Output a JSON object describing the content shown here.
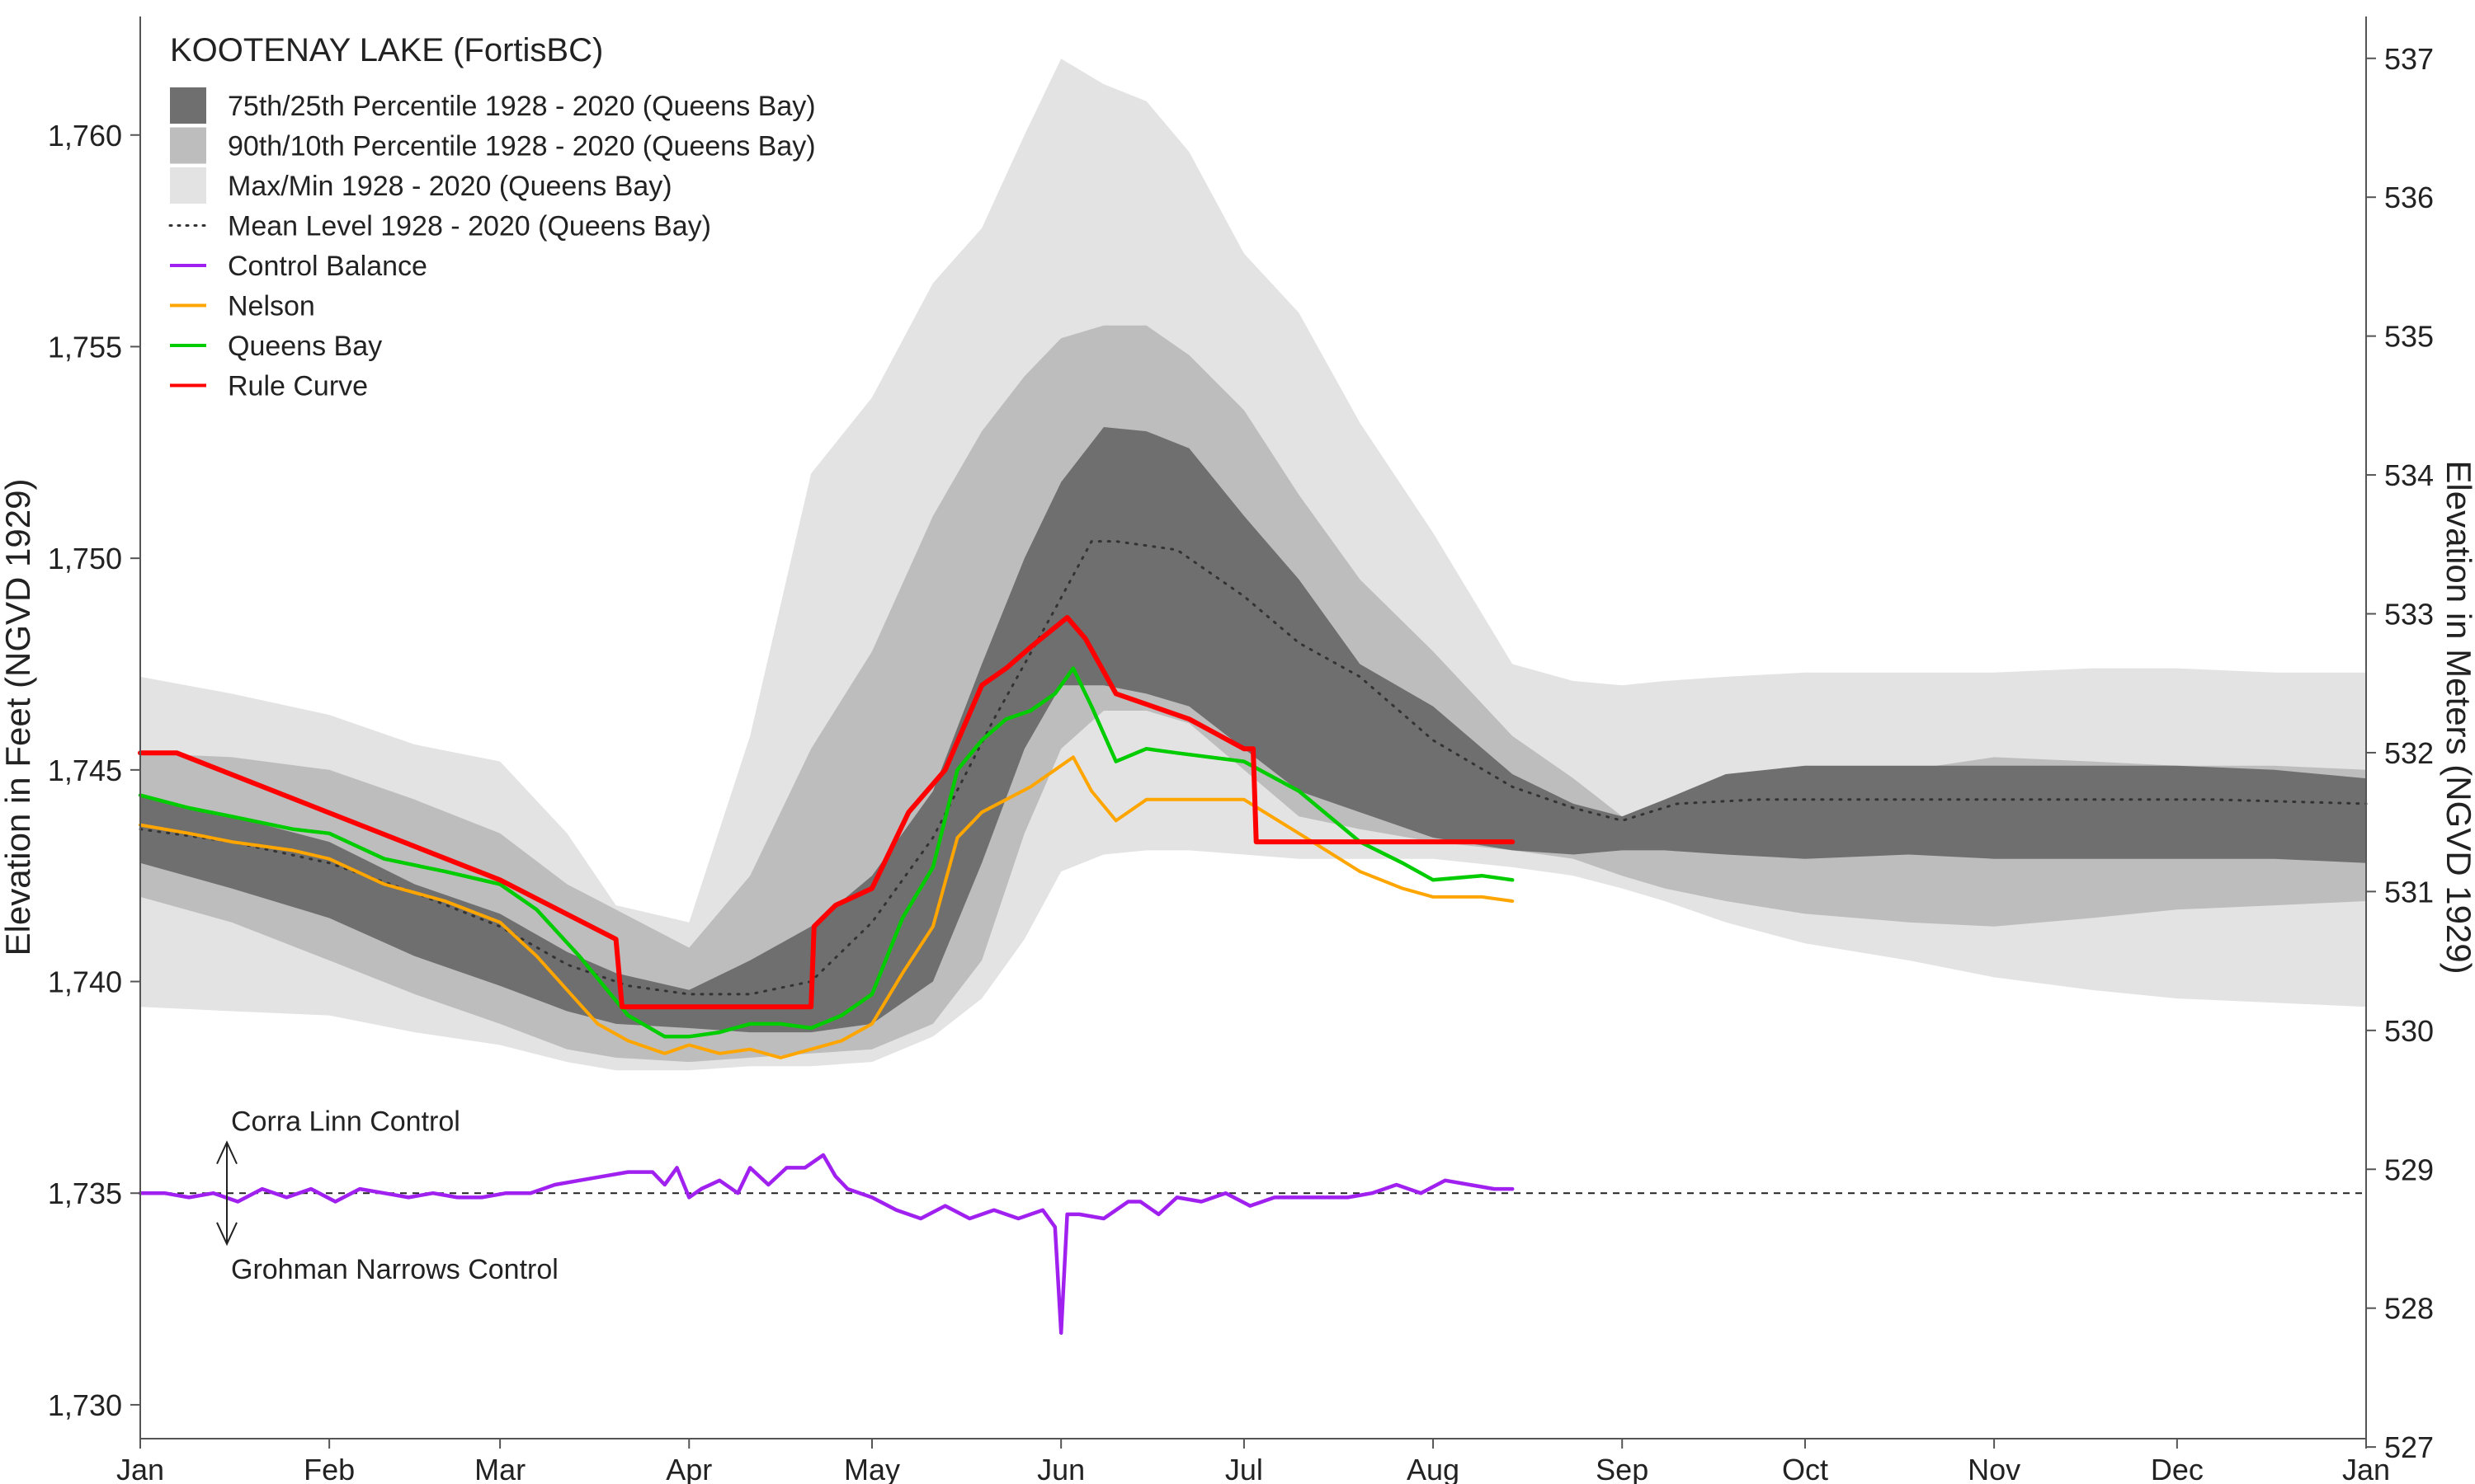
{
  "chart_data": {
    "type": "area+line",
    "title": "KOOTENAY LAKE (FortisBC)",
    "ylabel_left": "Elevation in Feet (NGVD 1929)",
    "ylabel_right": "Elevation in Meters (NGVD 1929)",
    "ylim_feet": [
      1729.2,
      1762.8
    ],
    "yticks_feet": [
      "1,730",
      "1,735",
      "1,740",
      "1,745",
      "1,750",
      "1,755",
      "1,760"
    ],
    "yticks_meters": [
      "527",
      "528",
      "529",
      "530",
      "531",
      "532",
      "533",
      "534",
      "535",
      "536",
      "537"
    ],
    "xlim_days": [
      0,
      365
    ],
    "xticks": [
      {
        "label": "Jan",
        "day": 0
      },
      {
        "label": "Feb",
        "day": 31
      },
      {
        "label": "Mar",
        "day": 59
      },
      {
        "label": "Apr",
        "day": 90
      },
      {
        "label": "May",
        "day": 120
      },
      {
        "label": "Jun",
        "day": 151
      },
      {
        "label": "Jul",
        "day": 181
      },
      {
        "label": "Aug",
        "day": 212
      },
      {
        "label": "Sep",
        "day": 243
      },
      {
        "label": "Oct",
        "day": 273
      },
      {
        "label": "Nov",
        "day": 304
      },
      {
        "label": "Dec",
        "day": 334
      },
      {
        "label": "Jan",
        "day": 365
      }
    ],
    "legend": [
      {
        "label": "75th/25th Percentile 1928 - 2020 (Queens Bay)",
        "kind": "fill",
        "color": "#6f6f6f"
      },
      {
        "label": "90th/10th Percentile 1928 - 2020 (Queens Bay)",
        "kind": "fill",
        "color": "#bdbdbd"
      },
      {
        "label": "Max/Min 1928 - 2020 (Queens Bay)",
        "kind": "fill",
        "color": "#e3e3e3"
      },
      {
        "label": "Mean Level 1928 - 2020 (Queens Bay)",
        "kind": "dotted",
        "color": "#333333"
      },
      {
        "label": "Control Balance",
        "kind": "line",
        "color": "#a020f0"
      },
      {
        "label": "Nelson",
        "kind": "line",
        "color": "#ffa500"
      },
      {
        "label": "Queens Bay",
        "kind": "line",
        "color": "#00cc00"
      },
      {
        "label": "Rule Curve",
        "kind": "line",
        "color": "#ff0000"
      }
    ],
    "bands": {
      "x": [
        0,
        15,
        31,
        45,
        59,
        70,
        78,
        90,
        100,
        110,
        120,
        130,
        138,
        145,
        151,
        158,
        165,
        172,
        181,
        190,
        200,
        212,
        225,
        235,
        243,
        250,
        260,
        273,
        290,
        304,
        320,
        334,
        350,
        365
      ],
      "max": [
        1747.2,
        1746.8,
        1746.3,
        1745.6,
        1745.2,
        1743.5,
        1741.8,
        1741.4,
        1745.8,
        1752.0,
        1753.8,
        1756.5,
        1757.8,
        1760.0,
        1761.8,
        1761.2,
        1760.8,
        1759.6,
        1757.2,
        1755.8,
        1753.2,
        1750.6,
        1747.5,
        1747.1,
        1747.0,
        1747.1,
        1747.2,
        1747.3,
        1747.3,
        1747.3,
        1747.4,
        1747.4,
        1747.3,
        1747.3
      ],
      "p90": [
        1745.4,
        1745.3,
        1745.0,
        1744.3,
        1743.5,
        1742.3,
        1741.7,
        1740.8,
        1742.5,
        1745.5,
        1747.8,
        1751.0,
        1753.0,
        1754.3,
        1755.2,
        1755.5,
        1755.5,
        1754.8,
        1753.5,
        1751.5,
        1749.5,
        1747.8,
        1745.8,
        1744.8,
        1743.9,
        1744.2,
        1744.6,
        1744.9,
        1745.0,
        1745.3,
        1745.2,
        1745.1,
        1745.1,
        1745.0
      ],
      "p75": [
        1744.4,
        1743.9,
        1743.3,
        1742.3,
        1741.6,
        1740.7,
        1740.2,
        1739.8,
        1740.5,
        1741.3,
        1742.5,
        1744.5,
        1747.5,
        1750.0,
        1751.8,
        1753.1,
        1753.0,
        1752.6,
        1751.0,
        1749.5,
        1747.5,
        1746.5,
        1744.9,
        1744.2,
        1743.9,
        1744.3,
        1744.9,
        1745.1,
        1745.1,
        1745.1,
        1745.1,
        1745.1,
        1745.0,
        1744.8
      ],
      "p25": [
        1742.8,
        1742.2,
        1741.5,
        1740.6,
        1739.9,
        1739.3,
        1739.0,
        1738.9,
        1738.8,
        1738.8,
        1739.0,
        1740.0,
        1742.8,
        1745.5,
        1747.0,
        1747.0,
        1746.8,
        1746.5,
        1745.5,
        1744.5,
        1744.0,
        1743.4,
        1743.1,
        1743.0,
        1743.1,
        1743.1,
        1743.0,
        1742.9,
        1743.0,
        1742.9,
        1742.9,
        1742.9,
        1742.9,
        1742.8
      ],
      "p10": [
        1742.0,
        1741.4,
        1740.5,
        1739.7,
        1739.0,
        1738.4,
        1738.2,
        1738.1,
        1738.2,
        1738.3,
        1738.4,
        1739.0,
        1740.5,
        1743.5,
        1745.5,
        1746.4,
        1746.4,
        1746.1,
        1745.0,
        1743.9,
        1743.6,
        1743.3,
        1743.1,
        1742.9,
        1742.5,
        1742.2,
        1741.9,
        1741.6,
        1741.4,
        1741.3,
        1741.5,
        1741.7,
        1741.8,
        1741.9
      ],
      "min": [
        1739.4,
        1739.3,
        1739.2,
        1738.8,
        1738.5,
        1738.1,
        1737.9,
        1737.9,
        1738.0,
        1738.0,
        1738.1,
        1738.7,
        1739.6,
        1741.0,
        1742.6,
        1743.0,
        1743.1,
        1743.1,
        1743.0,
        1742.9,
        1742.9,
        1742.9,
        1742.7,
        1742.5,
        1742.2,
        1741.9,
        1741.4,
        1740.9,
        1740.5,
        1740.1,
        1739.8,
        1739.6,
        1739.5,
        1739.4
      ]
    },
    "series": [
      {
        "name": "Mean Level 1928 - 2020 (Queens Bay)",
        "color": "#333333",
        "style": "dotted",
        "x": [
          0,
          15,
          31,
          45,
          59,
          70,
          80,
          90,
          100,
          110,
          120,
          130,
          140,
          150,
          156,
          160,
          170,
          181,
          190,
          200,
          212,
          225,
          235,
          243,
          252,
          265,
          280,
          300,
          320,
          340,
          365
        ],
        "y": [
          1743.6,
          1743.3,
          1742.8,
          1742.1,
          1741.3,
          1740.4,
          1739.9,
          1739.7,
          1739.7,
          1740.0,
          1741.4,
          1743.4,
          1746.2,
          1748.8,
          1750.4,
          1750.4,
          1750.2,
          1749.1,
          1748.0,
          1747.2,
          1745.7,
          1744.6,
          1744.1,
          1743.8,
          1744.2,
          1744.3,
          1744.3,
          1744.3,
          1744.3,
          1744.3,
          1744.2
        ]
      },
      {
        "name": "Rule Curve",
        "color": "#ff0000",
        "style": "solid",
        "x": [
          0,
          6,
          59,
          78,
          79,
          110,
          110.5,
          114,
          120,
          126,
          132,
          138,
          142,
          146,
          152,
          155,
          160,
          172,
          181,
          182.5,
          183,
          225
        ],
        "y": [
          1745.4,
          1745.4,
          1742.4,
          1741.0,
          1739.4,
          1739.4,
          1741.3,
          1741.8,
          1742.2,
          1744.0,
          1745.0,
          1747.0,
          1747.4,
          1747.9,
          1748.6,
          1748.1,
          1746.8,
          1746.2,
          1745.5,
          1745.5,
          1743.3,
          1743.3
        ]
      },
      {
        "name": "Queens Bay",
        "color": "#00cc00",
        "style": "solid",
        "x": [
          0,
          8,
          15,
          25,
          31,
          40,
          50,
          59,
          65,
          72,
          80,
          86,
          90,
          95,
          100,
          105,
          110,
          115,
          120,
          125,
          130,
          134,
          138,
          142,
          146,
          150,
          153,
          156,
          160,
          165,
          170,
          181,
          190,
          200,
          207,
          212,
          220,
          225
        ],
        "y": [
          1744.4,
          1744.1,
          1743.9,
          1743.6,
          1743.5,
          1742.9,
          1742.6,
          1742.3,
          1741.7,
          1740.6,
          1739.2,
          1738.7,
          1738.7,
          1738.8,
          1739.0,
          1739.0,
          1738.9,
          1739.2,
          1739.7,
          1741.5,
          1742.7,
          1745.0,
          1745.7,
          1746.2,
          1746.4,
          1746.8,
          1747.4,
          1746.5,
          1745.2,
          1745.5,
          1745.4,
          1745.2,
          1744.5,
          1743.3,
          1742.8,
          1742.4,
          1742.5,
          1742.4
        ]
      },
      {
        "name": "Nelson",
        "color": "#ffa500",
        "style": "solid",
        "x": [
          0,
          8,
          15,
          25,
          31,
          40,
          50,
          59,
          65,
          70,
          75,
          80,
          86,
          90,
          95,
          100,
          105,
          110,
          115,
          120,
          125,
          130,
          134,
          138,
          142,
          146,
          150,
          153,
          156,
          160,
          165,
          170,
          181,
          190,
          200,
          207,
          212,
          220,
          225
        ],
        "y": [
          1743.7,
          1743.5,
          1743.3,
          1743.1,
          1742.9,
          1742.3,
          1741.9,
          1741.4,
          1740.6,
          1739.8,
          1739.0,
          1738.6,
          1738.3,
          1738.5,
          1738.3,
          1738.4,
          1738.2,
          1738.4,
          1738.6,
          1739.0,
          1740.2,
          1741.3,
          1743.4,
          1744.0,
          1744.3,
          1744.6,
          1745.0,
          1745.3,
          1744.5,
          1743.8,
          1744.3,
          1744.3,
          1744.3,
          1743.5,
          1742.6,
          1742.2,
          1742.0,
          1742.0,
          1741.9
        ]
      },
      {
        "name": "Control Balance",
        "color": "#a020f0",
        "style": "solid",
        "x": [
          0,
          4,
          8,
          12,
          16,
          20,
          24,
          28,
          32,
          36,
          40,
          44,
          48,
          52,
          56,
          60,
          64,
          68,
          72,
          76,
          80,
          84,
          86,
          88,
          90,
          92,
          95,
          98,
          100,
          103,
          106,
          109,
          112,
          114,
          116,
          120,
          124,
          128,
          132,
          136,
          140,
          144,
          148,
          150,
          151,
          152,
          154,
          158,
          162,
          164,
          167,
          170,
          174,
          178,
          182,
          186,
          190,
          194,
          198,
          202,
          206,
          210,
          214,
          218,
          222,
          225
        ],
        "y": [
          1735.0,
          1735.0,
          1734.9,
          1735.0,
          1734.8,
          1735.1,
          1734.9,
          1735.1,
          1734.8,
          1735.1,
          1735.0,
          1734.9,
          1735.0,
          1734.9,
          1734.9,
          1735.0,
          1735.0,
          1735.2,
          1735.3,
          1735.4,
          1735.5,
          1735.5,
          1735.2,
          1735.6,
          1734.9,
          1735.1,
          1735.3,
          1735.0,
          1735.6,
          1735.2,
          1735.6,
          1735.6,
          1735.9,
          1735.4,
          1735.1,
          1734.9,
          1734.6,
          1734.4,
          1734.7,
          1734.4,
          1734.6,
          1734.4,
          1734.6,
          1734.2,
          1731.7,
          1734.5,
          1734.5,
          1734.4,
          1734.8,
          1734.8,
          1734.5,
          1734.9,
          1734.8,
          1735.0,
          1734.7,
          1734.9,
          1734.9,
          1734.9,
          1734.9,
          1735.0,
          1735.2,
          1735.0,
          1735.3,
          1735.2,
          1735.1,
          1735.1
        ]
      }
    ],
    "reference_line": {
      "y": 1735.0,
      "style": "dashed",
      "color": "#222222"
    },
    "annotations": [
      {
        "text": "Corra Linn Control",
        "direction": "up"
      },
      {
        "text": "Grohman Narrows Control",
        "direction": "down"
      }
    ]
  }
}
